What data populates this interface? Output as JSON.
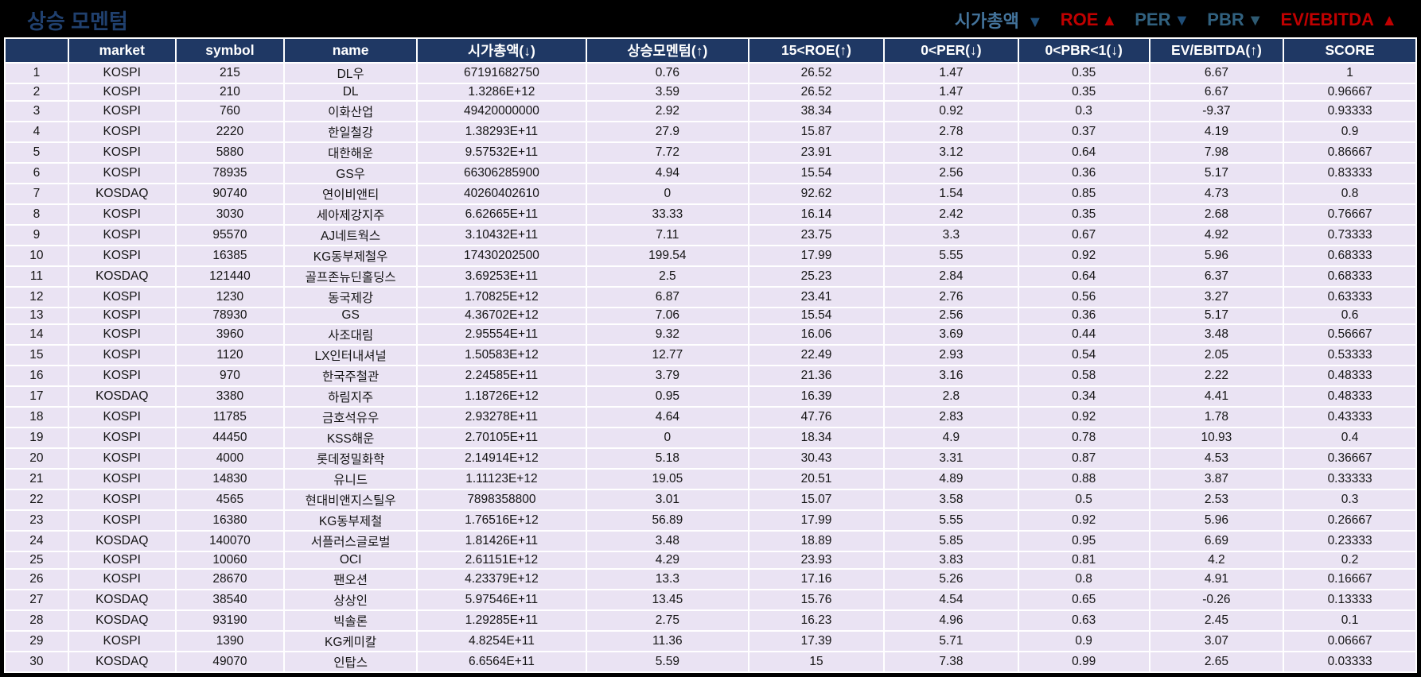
{
  "page": {
    "title": "상승 모멘텀"
  },
  "colors": {
    "page_bg": "#000000",
    "title": "#20406e",
    "header_bg": "#1f3864",
    "header_fg": "#ffffff",
    "cell_bg": "#eae3f3",
    "grid": "#ffffff",
    "legend_blue": "#3f6d92",
    "legend_arrow_blue": "#1f4e79",
    "legend_red": "#c00000"
  },
  "legend": {
    "items": [
      {
        "label": "시가총액 ",
        "arrow": "▼",
        "label_color": "#44749c",
        "arrow_color": "#1f4e79"
      },
      {
        "label": "ROE",
        "arrow": "▲",
        "label_color": "#c00000",
        "arrow_color": "#c00000"
      },
      {
        "label": "PER",
        "arrow": "▼",
        "label_color": "#31617f",
        "arrow_color": "#1f4e79"
      },
      {
        "label": "PBR",
        "arrow": "▼",
        "label_color": "#31617f",
        "arrow_color": "#2e5a72"
      },
      {
        "label": "EV/EBITDA ",
        "arrow": "▲",
        "label_color": "#c00000",
        "arrow_color": "#c00000"
      }
    ]
  },
  "table": {
    "column_keys": [
      "rank",
      "market",
      "symbol",
      "name",
      "market-cap",
      "momentum",
      "roe",
      "per",
      "pbr",
      "ev-ebitda",
      "score"
    ],
    "column_widths": [
      "4.5%",
      "7.6%",
      "7.7%",
      "9.4%",
      "12.0%",
      "11.5%",
      "9.6%",
      "9.5%",
      "9.3%",
      "9.5%",
      "9.4%"
    ],
    "columns": [
      "",
      "market",
      "symbol",
      "name",
      "시가총액(↓)",
      "상승모멘텀(↑)",
      "15<ROE(↑)",
      "0<PER(↓)",
      "0<PBR<1(↓)",
      "EV/EBITDA(↑)",
      "SCORE"
    ],
    "rows": [
      [
        "1",
        "KOSPI",
        "215",
        "DL우",
        "67191682750",
        "0.76",
        "26.52",
        "1.47",
        "0.35",
        "6.67",
        "1"
      ],
      [
        "2",
        "KOSPI",
        "210",
        "DL",
        "1.3286E+12",
        "3.59",
        "26.52",
        "1.47",
        "0.35",
        "6.67",
        "0.96667"
      ],
      [
        "3",
        "KOSPI",
        "760",
        "이화산업",
        "49420000000",
        "2.92",
        "38.34",
        "0.92",
        "0.3",
        "-9.37",
        "0.93333"
      ],
      [
        "4",
        "KOSPI",
        "2220",
        "한일철강",
        "1.38293E+11",
        "27.9",
        "15.87",
        "2.78",
        "0.37",
        "4.19",
        "0.9"
      ],
      [
        "5",
        "KOSPI",
        "5880",
        "대한해운",
        "9.57532E+11",
        "7.72",
        "23.91",
        "3.12",
        "0.64",
        "7.98",
        "0.86667"
      ],
      [
        "6",
        "KOSPI",
        "78935",
        "GS우",
        "66306285900",
        "4.94",
        "15.54",
        "2.56",
        "0.36",
        "5.17",
        "0.83333"
      ],
      [
        "7",
        "KOSDAQ",
        "90740",
        "연이비앤티",
        "40260402610",
        "0",
        "92.62",
        "1.54",
        "0.85",
        "4.73",
        "0.8"
      ],
      [
        "8",
        "KOSPI",
        "3030",
        "세아제강지주",
        "6.62665E+11",
        "33.33",
        "16.14",
        "2.42",
        "0.35",
        "2.68",
        "0.76667"
      ],
      [
        "9",
        "KOSPI",
        "95570",
        "AJ네트웍스",
        "3.10432E+11",
        "7.11",
        "23.75",
        "3.3",
        "0.67",
        "4.92",
        "0.73333"
      ],
      [
        "10",
        "KOSPI",
        "16385",
        "KG동부제철우",
        "17430202500",
        "199.54",
        "17.99",
        "5.55",
        "0.92",
        "5.96",
        "0.68333"
      ],
      [
        "11",
        "KOSDAQ",
        "121440",
        "골프존뉴딘홀딩스",
        "3.69253E+11",
        "2.5",
        "25.23",
        "2.84",
        "0.64",
        "6.37",
        "0.68333"
      ],
      [
        "12",
        "KOSPI",
        "1230",
        "동국제강",
        "1.70825E+12",
        "6.87",
        "23.41",
        "2.76",
        "0.56",
        "3.27",
        "0.63333"
      ],
      [
        "13",
        "KOSPI",
        "78930",
        "GS",
        "4.36702E+12",
        "7.06",
        "15.54",
        "2.56",
        "0.36",
        "5.17",
        "0.6"
      ],
      [
        "14",
        "KOSPI",
        "3960",
        "사조대림",
        "2.95554E+11",
        "9.32",
        "16.06",
        "3.69",
        "0.44",
        "3.48",
        "0.56667"
      ],
      [
        "15",
        "KOSPI",
        "1120",
        "LX인터내셔널",
        "1.50583E+12",
        "12.77",
        "22.49",
        "2.93",
        "0.54",
        "2.05",
        "0.53333"
      ],
      [
        "16",
        "KOSPI",
        "970",
        "한국주철관",
        "2.24585E+11",
        "3.79",
        "21.36",
        "3.16",
        "0.58",
        "2.22",
        "0.48333"
      ],
      [
        "17",
        "KOSDAQ",
        "3380",
        "하림지주",
        "1.18726E+12",
        "0.95",
        "16.39",
        "2.8",
        "0.34",
        "4.41",
        "0.48333"
      ],
      [
        "18",
        "KOSPI",
        "11785",
        "금호석유우",
        "2.93278E+11",
        "4.64",
        "47.76",
        "2.83",
        "0.92",
        "1.78",
        "0.43333"
      ],
      [
        "19",
        "KOSPI",
        "44450",
        "KSS해운",
        "2.70105E+11",
        "0",
        "18.34",
        "4.9",
        "0.78",
        "10.93",
        "0.4"
      ],
      [
        "20",
        "KOSPI",
        "4000",
        "롯데정밀화학",
        "2.14914E+12",
        "5.18",
        "30.43",
        "3.31",
        "0.87",
        "4.53",
        "0.36667"
      ],
      [
        "21",
        "KOSPI",
        "14830",
        "유니드",
        "1.11123E+12",
        "19.05",
        "20.51",
        "4.89",
        "0.88",
        "3.87",
        "0.33333"
      ],
      [
        "22",
        "KOSPI",
        "4565",
        "현대비앤지스틸우",
        "7898358800",
        "3.01",
        "15.07",
        "3.58",
        "0.5",
        "2.53",
        "0.3"
      ],
      [
        "23",
        "KOSPI",
        "16380",
        "KG동부제철",
        "1.76516E+12",
        "56.89",
        "17.99",
        "5.55",
        "0.92",
        "5.96",
        "0.26667"
      ],
      [
        "24",
        "KOSDAQ",
        "140070",
        "서플러스글로벌",
        "1.81426E+11",
        "3.48",
        "18.89",
        "5.85",
        "0.95",
        "6.69",
        "0.23333"
      ],
      [
        "25",
        "KOSPI",
        "10060",
        "OCI",
        "2.61151E+12",
        "4.29",
        "23.93",
        "3.83",
        "0.81",
        "4.2",
        "0.2"
      ],
      [
        "26",
        "KOSPI",
        "28670",
        "팬오션",
        "4.23379E+12",
        "13.3",
        "17.16",
        "5.26",
        "0.8",
        "4.91",
        "0.16667"
      ],
      [
        "27",
        "KOSDAQ",
        "38540",
        "상상인",
        "5.97546E+11",
        "13.45",
        "15.76",
        "4.54",
        "0.65",
        "-0.26",
        "0.13333"
      ],
      [
        "28",
        "KOSDAQ",
        "93190",
        "빅솔론",
        "1.29285E+11",
        "2.75",
        "16.23",
        "4.96",
        "0.63",
        "2.45",
        "0.1"
      ],
      [
        "29",
        "KOSPI",
        "1390",
        "KG케미칼",
        "4.8254E+11",
        "11.36",
        "17.39",
        "5.71",
        "0.9",
        "3.07",
        "0.06667"
      ],
      [
        "30",
        "KOSDAQ",
        "49070",
        "인탑스",
        "6.6564E+11",
        "5.59",
        "15",
        "7.38",
        "0.99",
        "2.65",
        "0.03333"
      ]
    ]
  }
}
